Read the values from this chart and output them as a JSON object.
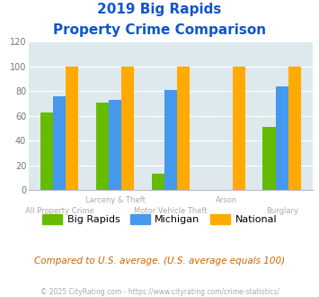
{
  "title_line1": "2019 Big Rapids",
  "title_line2": "Property Crime Comparison",
  "big_rapids": [
    63,
    71,
    13,
    null,
    51
  ],
  "michigan": [
    76,
    73,
    81,
    null,
    84
  ],
  "national": [
    100,
    100,
    100,
    100,
    100
  ],
  "bar_colors": [
    "#66bb00",
    "#4499ee",
    "#ffaa00"
  ],
  "legend_labels": [
    "Big Rapids",
    "Michigan",
    "National"
  ],
  "note_text": "Compared to U.S. average. (U.S. average equals 100)",
  "footer": "© 2025 CityRating.com - https://www.cityrating.com/crime-statistics/",
  "ylim": [
    0,
    120
  ],
  "yticks": [
    0,
    20,
    40,
    60,
    80,
    100,
    120
  ],
  "bg_color": "#dde9ec",
  "title_color": "#1155cc",
  "xlabel_color": "#aaaaaa",
  "note_color": "#cc6600",
  "footer_color": "#aaaaaa",
  "group_positions": [
    0,
    1,
    2,
    3,
    4
  ],
  "row1_labels": [
    [
      1,
      "Larceny & Theft"
    ],
    [
      3,
      "Arson"
    ]
  ],
  "row2_labels": [
    [
      0,
      "All Property Crime"
    ],
    [
      2,
      "Motor Vehicle Theft"
    ],
    [
      4,
      "Burglary"
    ]
  ]
}
